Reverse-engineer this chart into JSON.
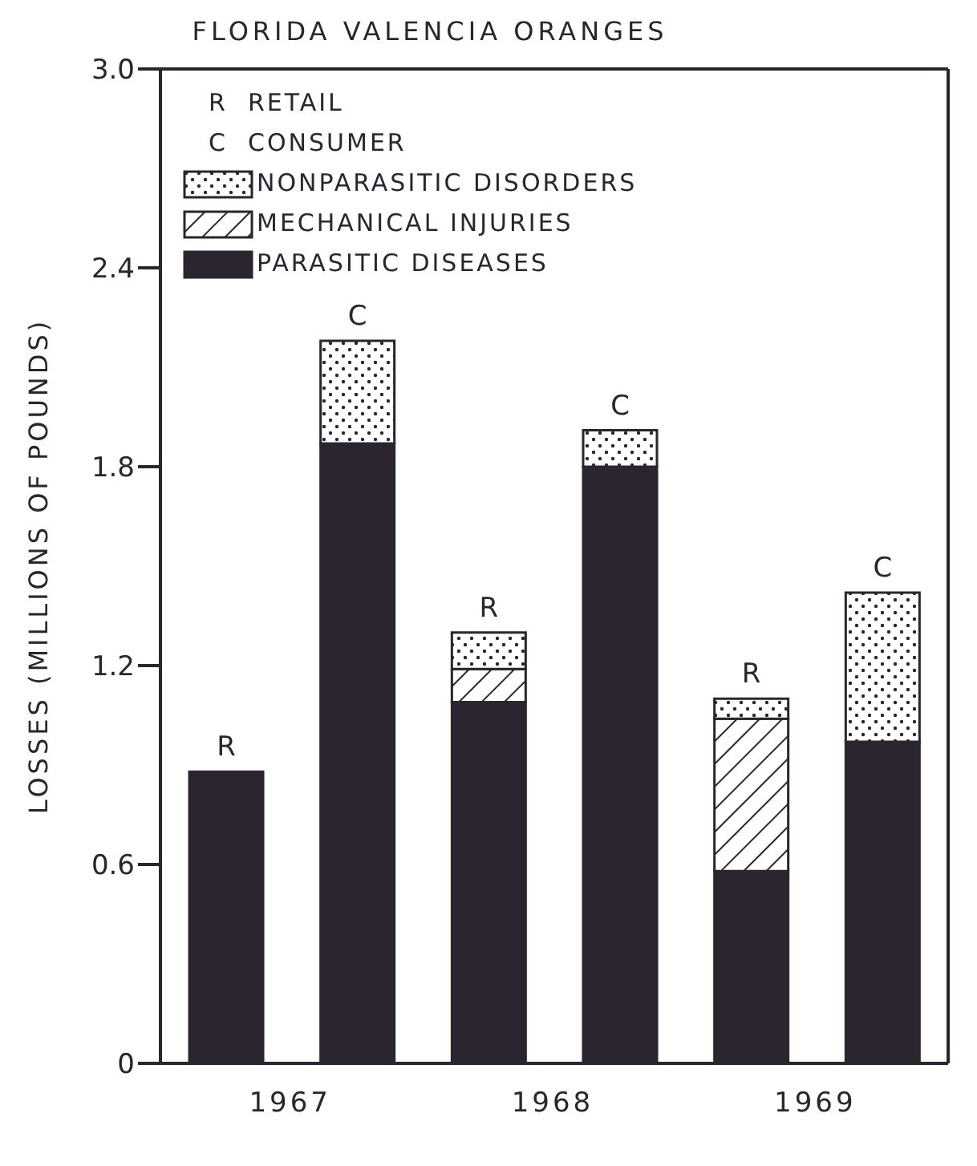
{
  "chart_data": {
    "type": "bar",
    "title": "FLORIDA VALENCIA ORANGES",
    "ylabel": "LOSSES (MILLIONS OF POUNDS)",
    "categories": [
      "R",
      "C",
      "R",
      "C",
      "R",
      "C"
    ],
    "stacked": true,
    "series": [
      {
        "name": "PARASITIC DISEASES",
        "color": "#2b2530",
        "values": [
          0.88,
          1.87,
          1.09,
          1.8,
          0.58,
          0.97
        ]
      },
      {
        "name": "MECHANICAL INJURIES",
        "color": "#2b2530",
        "values": [
          null,
          null,
          0.1,
          null,
          0.46,
          null
        ]
      },
      {
        "name": "NONPARASITIC DISORDERS",
        "color": "#2b2530",
        "values": [
          null,
          0.31,
          0.11,
          0.11,
          0.06,
          0.45
        ]
      }
    ],
    "annotations": [
      "R  RETAIL",
      "C  CONSUMER",
      "1967",
      "1968",
      "1969"
    ],
    "ylim": [
      0,
      3.0
    ],
    "yticks": [
      0,
      0.6,
      1.2,
      1.8,
      2.4,
      {
        "value": 3.0,
        "label": "3.0"
      }
    ],
    "legend": "top left",
    "grid": false
  }
}
